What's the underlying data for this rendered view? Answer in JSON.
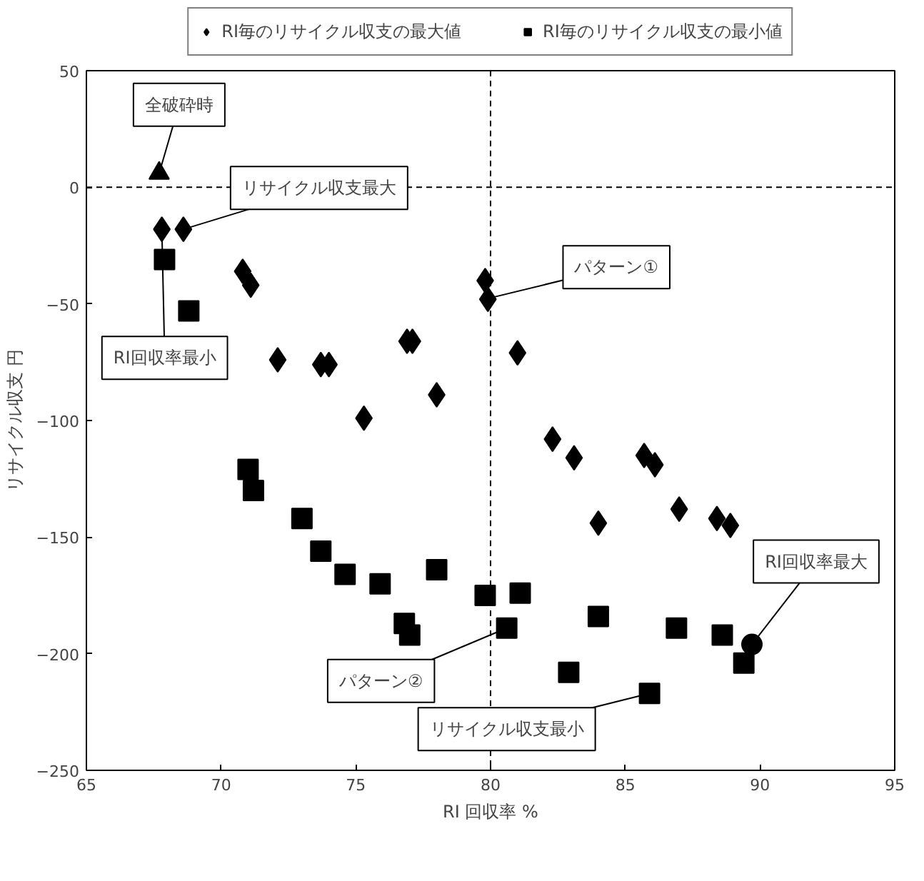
{
  "chart_data": {
    "type": "scatter",
    "xlabel": "RI 回収率 %",
    "ylabel": "リサイクル収支 円",
    "xlim": [
      65,
      95
    ],
    "ylim": [
      -250,
      50
    ],
    "xticks": [
      65,
      70,
      75,
      80,
      85,
      90,
      95
    ],
    "yticks": [
      -250,
      -200,
      -150,
      -100,
      -50,
      0,
      50
    ],
    "grid": false,
    "legend": "top",
    "series": [
      {
        "name": "RI毎のリサイクル収支の最大値",
        "color": "#000000",
        "marker": "diamond",
        "x": [
          67.8,
          68.6,
          70.8,
          71.1,
          72.1,
          73.7,
          74.0,
          75.3,
          76.9,
          77.1,
          78.0,
          79.8,
          79.9,
          81.0,
          82.3,
          83.1,
          84.0,
          85.7,
          86.1,
          87.0,
          88.4,
          88.9
        ],
        "values": [
          -18,
          -18,
          -36,
          -42,
          -74,
          -76,
          -76,
          -99,
          -66,
          -66,
          -89,
          -40,
          -48,
          -71,
          -108,
          -116,
          -144,
          -115,
          -119,
          -138,
          -142,
          -145
        ]
      },
      {
        "name": "RI毎のリサイクル収支の最小値",
        "color": "#000000",
        "marker": "square",
        "x": [
          67.9,
          68.8,
          71.0,
          71.2,
          73.0,
          73.7,
          74.6,
          75.9,
          76.8,
          77.0,
          78.0,
          79.8,
          81.1,
          80.6,
          82.9,
          84.0,
          85.9,
          86.9,
          88.6,
          89.4
        ],
        "values": [
          -31,
          -53,
          -121,
          -130,
          -142,
          -156,
          -166,
          -170,
          -187,
          -192,
          -164,
          -175,
          -174,
          -189,
          -208,
          -184,
          -217,
          -189,
          -192,
          -204
        ]
      },
      {
        "color": "#000000",
        "marker": "triangle",
        "x": [
          67.7
        ],
        "values": [
          6
        ]
      },
      {
        "color": "#000000",
        "marker": "circle",
        "x": [
          89.7
        ],
        "values": [
          -196
        ]
      }
    ],
    "ref_lines": [
      {
        "axis": "y",
        "value": 0,
        "line_style": "dashed"
      },
      {
        "axis": "x",
        "value": 80,
        "line_style": "dashed"
      }
    ],
    "annotations": [
      {
        "text": "全破砕時",
        "x": 67.7,
        "y": 6
      },
      {
        "text": "リサイクル収支最大",
        "x": 68.6,
        "y": -18
      },
      {
        "text": "RI回収率最小",
        "x": 67.8,
        "y": -18
      },
      {
        "text": "パターン①",
        "x": 79.9,
        "y": -47.7
      },
      {
        "text": "パターン②",
        "x": 80.6,
        "y": -189
      },
      {
        "text": "リサイクル収支最小",
        "x": 85.9,
        "y": -217
      },
      {
        "text": "RI回収率最大",
        "x": 89.7,
        "y": -196
      }
    ]
  }
}
